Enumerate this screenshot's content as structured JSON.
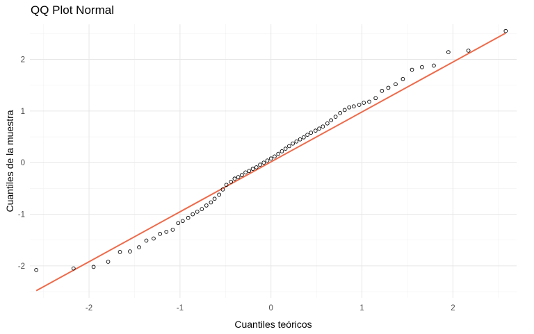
{
  "chart_data": {
    "type": "scatter",
    "title": "QQ Plot Normal",
    "xlabel": "Cuantiles teóricos",
    "ylabel": "Cuantiles de la muestra",
    "xlim": [
      -2.65,
      2.7
    ],
    "ylim": [
      -2.62,
      2.68
    ],
    "xticks": [
      -2,
      -1,
      0,
      1,
      2
    ],
    "yticks": [
      -2,
      -1,
      0,
      1,
      2
    ],
    "grid": true,
    "legend": "none",
    "colors": {
      "points": "#000000",
      "line": "#ee6a4a",
      "grid_major": "#e6e6e6",
      "grid_minor": "#f2f2f2"
    },
    "reference_line": {
      "x": [
        -2.58,
        2.58
      ],
      "y": [
        -2.48,
        2.51
      ]
    },
    "points": {
      "x": [
        -2.58,
        -2.17,
        -1.95,
        -1.79,
        -1.66,
        -1.55,
        -1.45,
        -1.37,
        -1.29,
        -1.22,
        -1.15,
        -1.08,
        -1.02,
        -0.97,
        -0.91,
        -0.86,
        -0.81,
        -0.76,
        -0.71,
        -0.66,
        -0.62,
        -0.57,
        -0.53,
        -0.49,
        -0.44,
        -0.4,
        -0.36,
        -0.32,
        -0.28,
        -0.24,
        -0.2,
        -0.16,
        -0.12,
        -0.08,
        -0.04,
        0.0,
        0.04,
        0.08,
        0.12,
        0.16,
        0.2,
        0.24,
        0.28,
        0.32,
        0.36,
        0.4,
        0.44,
        0.49,
        0.53,
        0.57,
        0.62,
        0.66,
        0.71,
        0.76,
        0.81,
        0.86,
        0.91,
        0.97,
        1.02,
        1.08,
        1.15,
        1.22,
        1.29,
        1.37,
        1.45,
        1.55,
        1.66,
        1.79,
        1.95,
        2.17,
        2.58
      ],
      "y": [
        -2.08,
        -2.05,
        -2.02,
        -1.92,
        -1.73,
        -1.72,
        -1.64,
        -1.51,
        -1.47,
        -1.38,
        -1.34,
        -1.3,
        -1.17,
        -1.13,
        -1.07,
        -1.0,
        -0.95,
        -0.9,
        -0.83,
        -0.77,
        -0.7,
        -0.62,
        -0.52,
        -0.43,
        -0.37,
        -0.31,
        -0.28,
        -0.24,
        -0.19,
        -0.16,
        -0.12,
        -0.09,
        -0.04,
        0.0,
        0.04,
        0.08,
        0.12,
        0.17,
        0.22,
        0.27,
        0.32,
        0.37,
        0.41,
        0.45,
        0.49,
        0.54,
        0.58,
        0.62,
        0.66,
        0.7,
        0.76,
        0.82,
        0.89,
        0.96,
        1.02,
        1.07,
        1.09,
        1.12,
        1.16,
        1.18,
        1.25,
        1.39,
        1.45,
        1.52,
        1.62,
        1.8,
        1.85,
        1.88,
        2.14,
        2.17,
        2.55
      ]
    }
  }
}
